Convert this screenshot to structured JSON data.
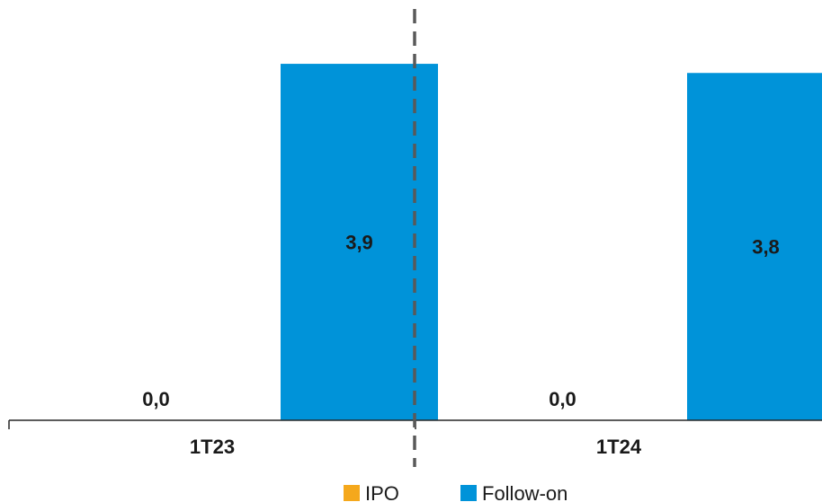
{
  "chart_data": {
    "type": "bar",
    "categories": [
      "1T23",
      "1T24"
    ],
    "series": [
      {
        "name": "IPO",
        "color": "#F5A81C",
        "values": [
          0.0,
          0.0
        ],
        "labels": [
          "0,0",
          "0,0"
        ]
      },
      {
        "name": "Follow-on",
        "color": "#0093D9",
        "values": [
          3.9,
          3.8
        ],
        "labels": [
          "3,9",
          "3,8"
        ]
      }
    ],
    "ylim": [
      0,
      4.5
    ],
    "grid": false,
    "legend_position": "bottom",
    "separator": "dashed vertical line between periods"
  }
}
